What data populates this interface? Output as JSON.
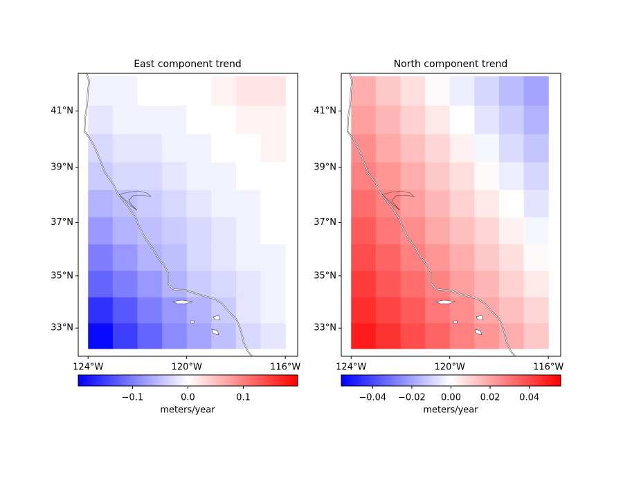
{
  "chart_data": [
    {
      "type": "heatmap",
      "title": "East component trend",
      "colormap": "bwr",
      "x": [
        -123.5,
        -122.5,
        -121.5,
        -120.5,
        -119.5,
        -118.5,
        -117.5,
        -116.5
      ],
      "y": [
        32.7,
        33.7,
        34.7,
        35.7,
        36.7,
        37.7,
        38.7,
        39.7,
        40.7,
        41.7
      ],
      "values": [
        [
          -0.19,
          -0.15,
          -0.12,
          -0.09,
          -0.07,
          -0.05,
          -0.03,
          -0.02
        ],
        [
          -0.16,
          -0.13,
          -0.1,
          -0.08,
          -0.06,
          -0.04,
          -0.02,
          -0.01
        ],
        [
          -0.12,
          -0.1,
          -0.08,
          -0.06,
          -0.04,
          -0.03,
          -0.02,
          -0.01
        ],
        [
          -0.1,
          -0.08,
          -0.06,
          -0.05,
          -0.03,
          -0.02,
          -0.01,
          -0.01
        ],
        [
          -0.08,
          -0.06,
          -0.05,
          -0.04,
          -0.03,
          -0.02,
          -0.01,
          0.0
        ],
        [
          -0.06,
          -0.05,
          -0.04,
          -0.03,
          -0.02,
          -0.01,
          -0.01,
          0.0
        ],
        [
          -0.04,
          -0.03,
          -0.03,
          -0.02,
          -0.01,
          -0.01,
          0.0,
          0.0
        ],
        [
          -0.03,
          -0.02,
          -0.02,
          -0.01,
          -0.01,
          0.0,
          0.0,
          0.01
        ],
        [
          -0.02,
          -0.01,
          -0.01,
          -0.01,
          0.0,
          0.0,
          0.01,
          0.01
        ],
        [
          -0.01,
          -0.01,
          0.0,
          0.0,
          0.0,
          0.01,
          0.02,
          0.02
        ]
      ],
      "xlim": [
        -124.4,
        -115.5
      ],
      "ylim": [
        31.9,
        42.3
      ],
      "xticks": [
        {
          "value": -124,
          "label": "124°W"
        },
        {
          "value": -120,
          "label": "120°W"
        },
        {
          "value": -116,
          "label": "116°W"
        }
      ],
      "yticks": [
        {
          "value": 33,
          "label": "33°N"
        },
        {
          "value": 35,
          "label": "35°N"
        },
        {
          "value": 37,
          "label": "37°N"
        },
        {
          "value": 39,
          "label": "39°N"
        },
        {
          "value": 41,
          "label": "41°N"
        }
      ],
      "clim": [
        -0.198,
        0.198
      ],
      "cticks": [
        {
          "value": -0.1,
          "label": "−0.1"
        },
        {
          "value": 0,
          "label": "0.0"
        },
        0.1
      ],
      "colorbar_label": "meters/year"
    },
    {
      "type": "heatmap",
      "title": "North component trend",
      "colormap": "bwr",
      "x": [
        -123.5,
        -122.5,
        -121.5,
        -120.5,
        -119.5,
        -118.5,
        -117.5,
        -116.5
      ],
      "y": [
        32.7,
        33.7,
        34.7,
        35.7,
        36.7,
        37.7,
        38.7,
        39.7,
        40.7,
        41.7
      ],
      "values": [
        [
          0.05,
          0.045,
          0.039,
          0.034,
          0.028,
          0.023,
          0.018,
          0.012
        ],
        [
          0.046,
          0.041,
          0.036,
          0.03,
          0.025,
          0.019,
          0.014,
          0.009
        ],
        [
          0.043,
          0.037,
          0.032,
          0.027,
          0.021,
          0.016,
          0.01,
          0.005
        ],
        [
          0.039,
          0.034,
          0.028,
          0.023,
          0.018,
          0.012,
          0.007,
          0.001
        ],
        [
          0.036,
          0.03,
          0.025,
          0.019,
          0.014,
          0.009,
          0.003,
          -0.002
        ],
        [
          0.032,
          0.027,
          0.021,
          0.016,
          0.01,
          0.005,
          0.0,
          -0.006
        ],
        [
          0.028,
          0.023,
          0.018,
          0.012,
          0.007,
          0.001,
          -0.004,
          -0.009
        ],
        [
          0.025,
          0.019,
          0.014,
          0.009,
          0.003,
          -0.002,
          -0.008,
          -0.013
        ],
        [
          0.021,
          0.016,
          0.01,
          0.005,
          0.0,
          -0.006,
          -0.011,
          -0.017
        ],
        [
          0.018,
          0.012,
          0.007,
          0.001,
          -0.004,
          -0.009,
          -0.015,
          -0.02
        ]
      ],
      "xlim": [
        -124.4,
        -115.5
      ],
      "ylim": [
        31.9,
        42.3
      ],
      "xticks": [
        {
          "value": -124,
          "label": "124°W"
        },
        {
          "value": -120,
          "label": "120°W"
        },
        {
          "value": -116,
          "label": "116°W"
        }
      ],
      "yticks": [
        {
          "value": 33,
          "label": "33°N"
        },
        {
          "value": 35,
          "label": "35°N"
        },
        {
          "value": 37,
          "label": "37°N"
        },
        {
          "value": 39,
          "label": "39°N"
        },
        {
          "value": 41,
          "label": "41°N"
        }
      ],
      "clim": [
        -0.056,
        0.056
      ],
      "cticks": [
        {
          "value": -0.04,
          "label": "−0.04"
        },
        {
          "value": -0.02,
          "label": "−0.02"
        },
        {
          "value": 0,
          "label": "0.00"
        },
        0.02,
        0.04
      ],
      "colorbar_label": "meters/year"
    }
  ]
}
